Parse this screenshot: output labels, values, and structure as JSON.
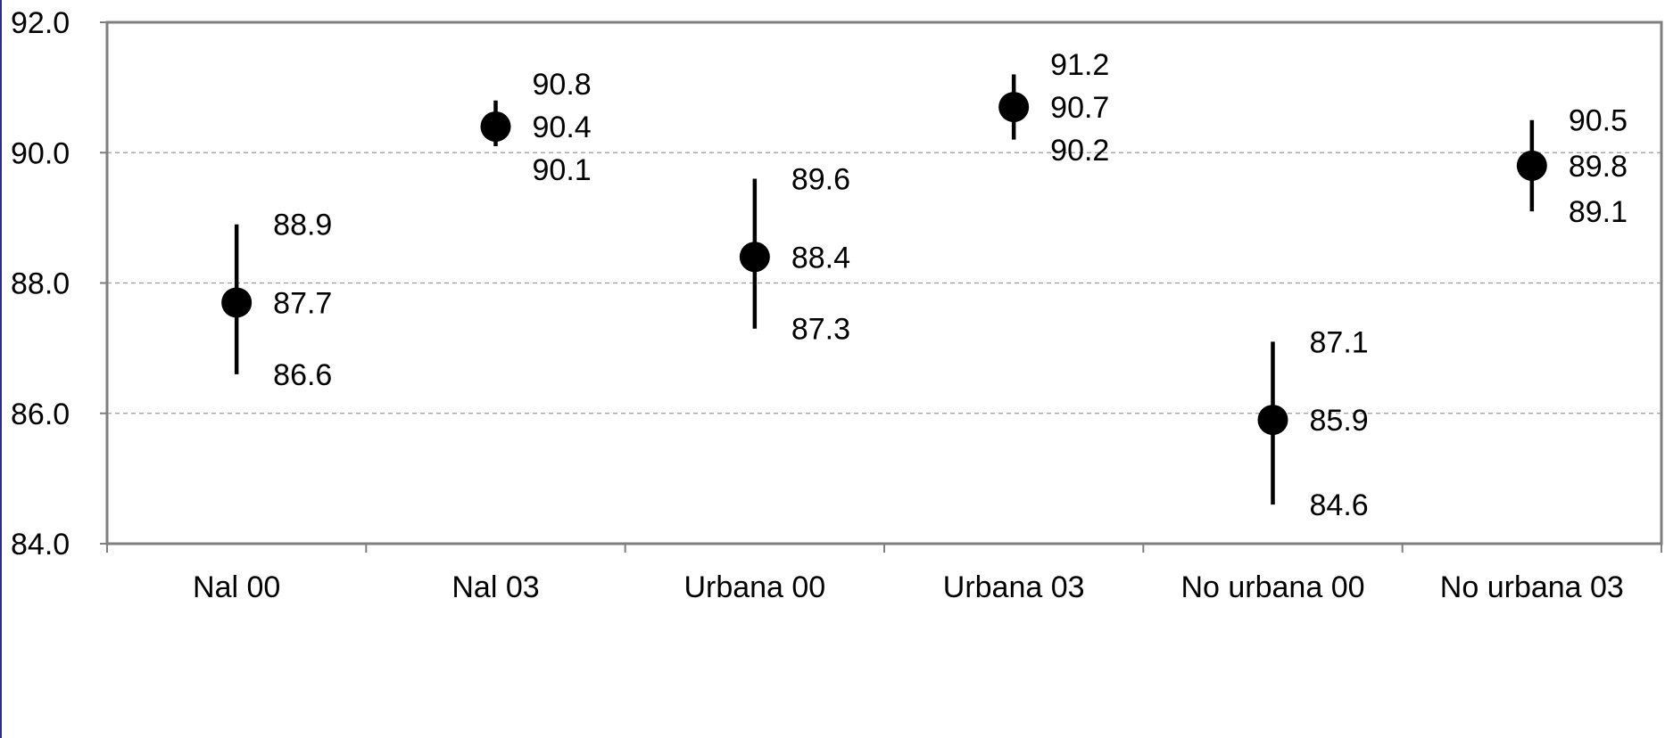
{
  "chart_data": {
    "type": "scatter",
    "variant": "error-bar",
    "title": "",
    "xlabel": "",
    "ylabel": "",
    "categories": [
      "Nal 00",
      "Nal 03",
      "Urbana 00",
      "Urbana 03",
      "No urbana 00",
      "No urbana 03"
    ],
    "points": [
      {
        "value": 87.7,
        "value_label": "87.7",
        "upper": 88.9,
        "upper_label": "88.9",
        "lower": 86.6,
        "lower_label": "86.6"
      },
      {
        "value": 90.4,
        "value_label": "90.4",
        "upper": 90.8,
        "upper_label": "90.8",
        "lower": 90.1,
        "lower_label": "90.1"
      },
      {
        "value": 88.4,
        "value_label": "88.4",
        "upper": 89.6,
        "upper_label": "89.6",
        "lower": 87.3,
        "lower_label": "87.3"
      },
      {
        "value": 90.7,
        "value_label": "90.7",
        "upper": 91.2,
        "upper_label": "91.2",
        "lower": 90.2,
        "lower_label": "90.2"
      },
      {
        "value": 85.9,
        "value_label": "85.9",
        "upper": 87.1,
        "upper_label": "87.1",
        "lower": 84.6,
        "lower_label": "84.6"
      },
      {
        "value": 89.8,
        "value_label": "89.8",
        "upper": 90.5,
        "upper_label": "90.5",
        "lower": 89.1,
        "lower_label": "89.1"
      }
    ],
    "yticks": [
      "84.0",
      "86.0",
      "88.0",
      "90.0",
      "92.0"
    ],
    "ylim": [
      84,
      92
    ],
    "grid": "horizontal dashed",
    "legend": "none",
    "colors": {
      "marker": "#000000",
      "grid": "#9a9a9a",
      "axis": "#7f7f7f",
      "frame": "#2b2b8a"
    }
  }
}
